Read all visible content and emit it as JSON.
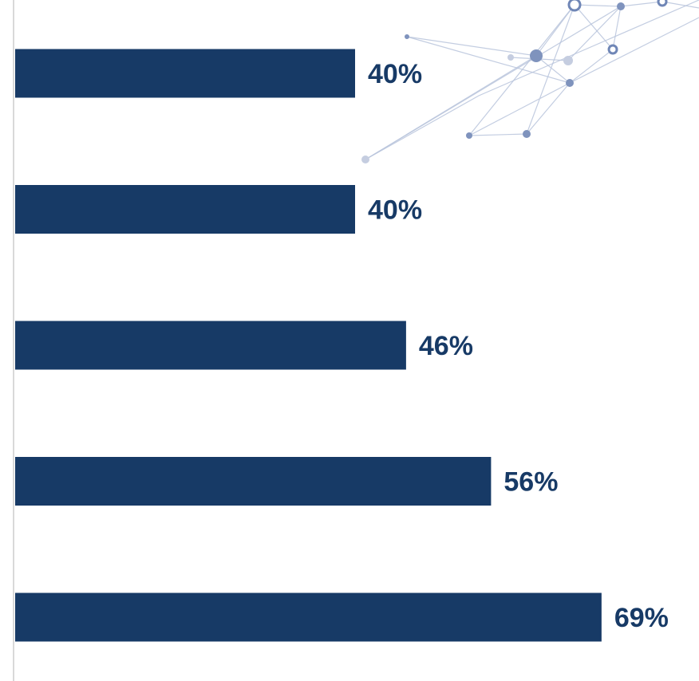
{
  "chart_data": {
    "type": "bar",
    "orientation": "horizontal",
    "categories": [
      "",
      "",
      "",
      "",
      ""
    ],
    "values": [
      40,
      40,
      46,
      56,
      69
    ],
    "value_labels": [
      "40%",
      "40%",
      "46%",
      "56%",
      "69%"
    ],
    "unit": "%",
    "title": "",
    "xlabel": "",
    "ylabel": "",
    "xlim": [
      0,
      100
    ],
    "grid": false,
    "legend": "none",
    "bar_color": "#173a66",
    "label_color": "#173a66"
  },
  "decoration": {
    "name": "network-graphic",
    "color": "#7f93bd"
  }
}
